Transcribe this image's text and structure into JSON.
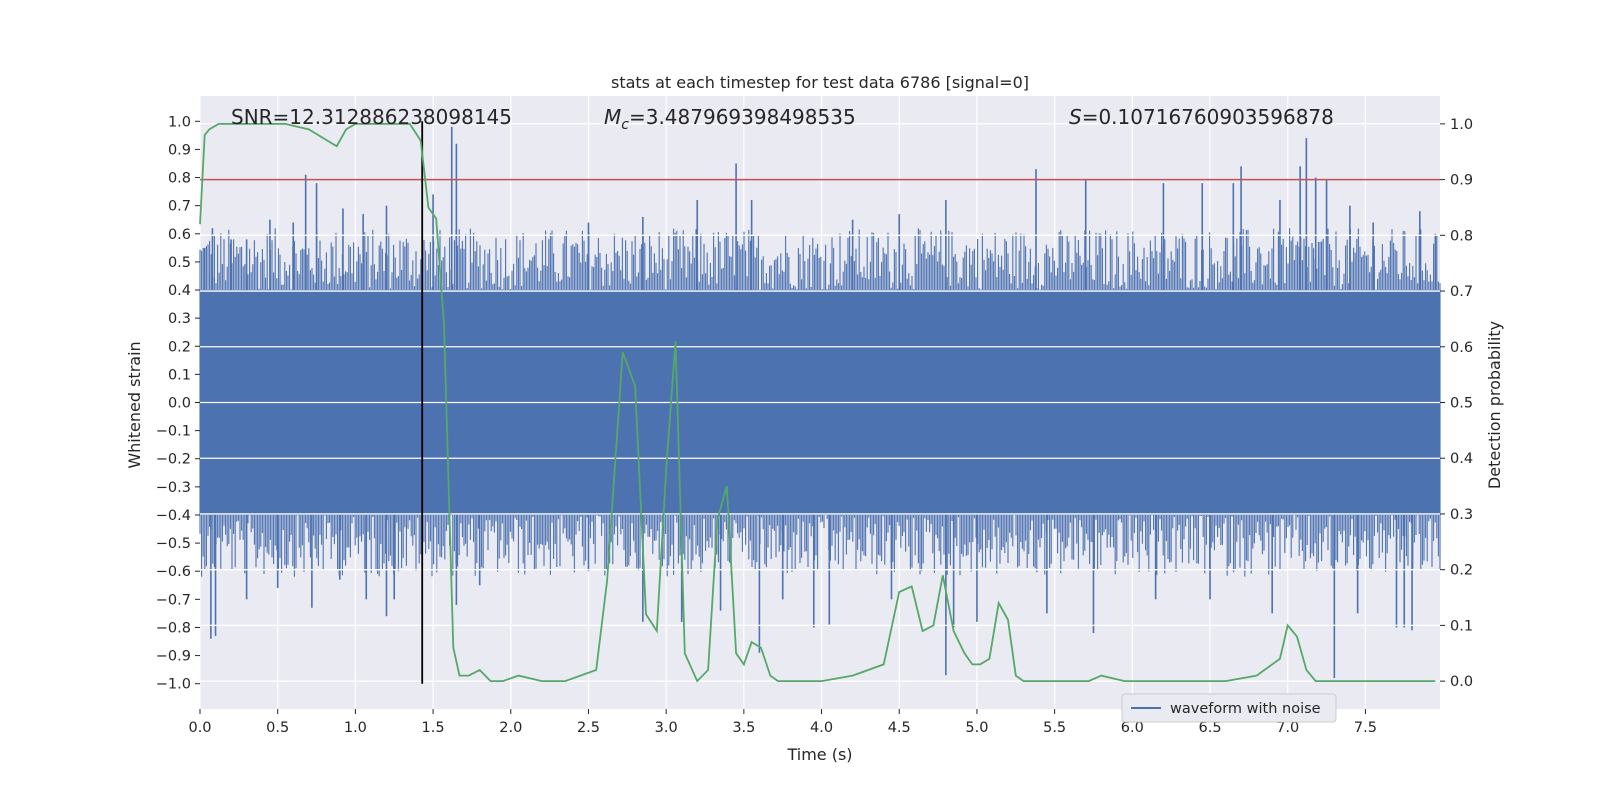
{
  "chart_data": {
    "type": "line",
    "title": "stats at each timestep for test data 6786 [signal=0]",
    "xlabel": "Time (s)",
    "ylabel_left": "Whitened strain",
    "ylabel_right": "Detection probability",
    "xlim": [
      0.0,
      7.98
    ],
    "ylim_left": [
      -1.09,
      1.09
    ],
    "ylim_right": [
      -0.05,
      1.05
    ],
    "x_ticks": [
      "0.0",
      "0.5",
      "1.0",
      "1.5",
      "2.0",
      "2.5",
      "3.0",
      "3.5",
      "4.0",
      "4.5",
      "5.0",
      "5.5",
      "6.0",
      "6.5",
      "7.0",
      "7.5"
    ],
    "y_ticks_left": [
      "1.0",
      "0.9",
      "0.8",
      "0.7",
      "0.6",
      "0.5",
      "0.4",
      "0.3",
      "0.2",
      "0.1",
      "0.0",
      "-0.1",
      "-0.2",
      "-0.3",
      "-0.4",
      "-0.5",
      "-0.6",
      "-0.7",
      "-0.8",
      "-0.9",
      "-1.0"
    ],
    "y_ticks_right": [
      "1.0",
      "0.9",
      "0.8",
      "0.7",
      "0.6",
      "0.5",
      "0.4",
      "0.3",
      "0.2",
      "0.1",
      "0.0"
    ],
    "grid": true,
    "legend_position": "lower-right",
    "annotations": {
      "snr": "SNR=12.312886238098145",
      "mc_symbol": "M",
      "mc_sub": "c",
      "mc_value": "=3.487969398498535",
      "s_symbol": "S",
      "s_value": "=0.10716760903596878"
    },
    "threshold_right": 0.9,
    "marker_time": 1.43,
    "series": [
      {
        "name": "waveform with noise",
        "color": "#4c72b0",
        "noise_band": [
          -0.4,
          0.4
        ],
        "spikes_up": [
          [
            0.03,
            0.55
          ],
          [
            0.08,
            0.62
          ],
          [
            0.2,
            0.58
          ],
          [
            0.3,
            0.58
          ],
          [
            0.45,
            0.65
          ],
          [
            0.6,
            0.64
          ],
          [
            0.68,
            0.81
          ],
          [
            0.75,
            0.78
          ],
          [
            0.92,
            0.69
          ],
          [
            1.05,
            0.67
          ],
          [
            1.2,
            0.7
          ],
          [
            1.5,
            0.74
          ],
          [
            1.62,
            0.98
          ],
          [
            1.65,
            0.92
          ],
          [
            2.5,
            0.64
          ],
          [
            2.85,
            0.66
          ],
          [
            3.2,
            0.72
          ],
          [
            3.45,
            0.85
          ],
          [
            3.55,
            0.72
          ],
          [
            4.2,
            0.65
          ],
          [
            4.5,
            0.67
          ],
          [
            4.8,
            0.72
          ],
          [
            5.38,
            0.83
          ],
          [
            5.7,
            0.79
          ],
          [
            6.2,
            0.78
          ],
          [
            6.45,
            0.78
          ],
          [
            6.65,
            0.78
          ],
          [
            6.7,
            0.84
          ],
          [
            6.95,
            0.72
          ],
          [
            7.08,
            0.84
          ],
          [
            7.12,
            0.94
          ],
          [
            7.18,
            0.8
          ],
          [
            7.25,
            0.79
          ],
          [
            7.4,
            0.7
          ],
          [
            7.55,
            0.64
          ],
          [
            7.85,
            0.68
          ],
          [
            7.95,
            0.6
          ]
        ],
        "spikes_down": [
          [
            0.07,
            -0.84
          ],
          [
            0.1,
            -0.83
          ],
          [
            0.3,
            -0.7
          ],
          [
            0.5,
            -0.66
          ],
          [
            0.72,
            -0.73
          ],
          [
            0.9,
            -0.63
          ],
          [
            1.07,
            -0.7
          ],
          [
            1.2,
            -0.76
          ],
          [
            1.25,
            -0.7
          ],
          [
            1.65,
            -0.72
          ],
          [
            1.8,
            -0.65
          ],
          [
            2.5,
            -0.6
          ],
          [
            2.85,
            -0.78
          ],
          [
            3.1,
            -0.78
          ],
          [
            3.35,
            -0.74
          ],
          [
            3.6,
            -0.89
          ],
          [
            3.75,
            -0.7
          ],
          [
            3.95,
            -0.8
          ],
          [
            4.05,
            -0.79
          ],
          [
            4.45,
            -0.7
          ],
          [
            4.8,
            -0.97
          ],
          [
            4.85,
            -0.8
          ],
          [
            5.0,
            -0.78
          ],
          [
            5.45,
            -0.75
          ],
          [
            5.75,
            -0.82
          ],
          [
            6.15,
            -0.7
          ],
          [
            6.5,
            -0.7
          ],
          [
            6.9,
            -0.75
          ],
          [
            7.3,
            -0.98
          ],
          [
            7.45,
            -0.75
          ],
          [
            7.7,
            -0.8
          ],
          [
            7.75,
            -0.8
          ],
          [
            7.8,
            -0.81
          ]
        ]
      },
      {
        "name": "",
        "color": "#55a868",
        "x": [
          0.0,
          0.03,
          0.06,
          0.12,
          0.25,
          0.4,
          0.55,
          0.7,
          0.82,
          0.88,
          0.94,
          1.0,
          1.07,
          1.2,
          1.35,
          1.42,
          1.47,
          1.52,
          1.57,
          1.63,
          1.67,
          1.73,
          1.8,
          1.87,
          1.95,
          2.05,
          2.2,
          2.35,
          2.55,
          2.62,
          2.72,
          2.8,
          2.87,
          2.94,
          3.0,
          3.06,
          3.12,
          3.2,
          3.27,
          3.33,
          3.39,
          3.45,
          3.5,
          3.55,
          3.61,
          3.67,
          3.72,
          3.78,
          3.85,
          4.0,
          4.2,
          4.4,
          4.5,
          4.58,
          4.65,
          4.72,
          4.78,
          4.85,
          4.92,
          4.97,
          5.02,
          5.08,
          5.14,
          5.2,
          5.25,
          5.3,
          5.38,
          5.43,
          5.5,
          5.6,
          5.72,
          5.8,
          5.95,
          6.1,
          6.2,
          6.3,
          6.45,
          6.6,
          6.8,
          6.95,
          7.0,
          7.06,
          7.12,
          7.18,
          7.25,
          7.32,
          7.45,
          7.65,
          7.8,
          7.95
        ],
        "values": [
          0.82,
          0.98,
          0.99,
          1.0,
          1.0,
          1.0,
          1.0,
          0.99,
          0.97,
          0.96,
          0.99,
          1.0,
          1.0,
          1.0,
          1.0,
          0.97,
          0.85,
          0.83,
          0.64,
          0.06,
          0.01,
          0.01,
          0.02,
          0.0,
          0.0,
          0.01,
          0.0,
          0.0,
          0.02,
          0.18,
          0.59,
          0.53,
          0.12,
          0.09,
          0.38,
          0.61,
          0.05,
          0.0,
          0.02,
          0.29,
          0.35,
          0.05,
          0.03,
          0.07,
          0.06,
          0.01,
          0.0,
          0.0,
          0.0,
          0.0,
          0.01,
          0.03,
          0.16,
          0.17,
          0.09,
          0.1,
          0.19,
          0.09,
          0.05,
          0.03,
          0.03,
          0.04,
          0.14,
          0.11,
          0.01,
          0.0,
          0.0,
          0.0,
          0.0,
          0.0,
          0.0,
          0.01,
          0.0,
          0.0,
          0.0,
          0.0,
          0.0,
          0.0,
          0.01,
          0.04,
          0.1,
          0.08,
          0.02,
          0.0,
          0.0,
          0.0,
          0.0,
          0.0,
          0.0,
          0.0
        ]
      }
    ]
  }
}
